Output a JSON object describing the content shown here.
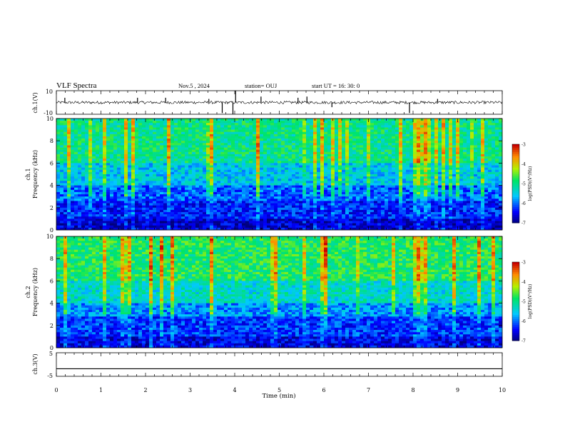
{
  "header": {
    "title": "VLF Spectra",
    "date": "Nov.5 , 2024",
    "station": "station= OUJ",
    "start": "start UT = 16: 30: 0"
  },
  "chart_data": [
    {
      "type": "line",
      "panel": "ch1-waveform",
      "ylabel": "ch.1(V)",
      "ylim": [
        -10,
        10
      ],
      "yticks": [
        "10",
        "-10"
      ],
      "xlim": [
        0,
        10
      ],
      "series": [
        {
          "baseline": 0,
          "noise_amplitude": 1.2,
          "spikes": [
            {
              "x": 0.19,
              "y": 4
            },
            {
              "x": 1.82,
              "y": 4
            },
            {
              "x": 2.45,
              "y": 4
            },
            {
              "x": 3.42,
              "y": 3
            },
            {
              "x": 3.72,
              "y": -9
            },
            {
              "x": 3.96,
              "y": -10
            },
            {
              "x": 4.02,
              "y": 10
            },
            {
              "x": 4.59,
              "y": 5
            },
            {
              "x": 5.42,
              "y": 4
            },
            {
              "x": 5.62,
              "y": 5
            },
            {
              "x": 6.18,
              "y": -4
            },
            {
              "x": 7.92,
              "y": -9
            },
            {
              "x": 8.55,
              "y": 3
            }
          ]
        }
      ]
    },
    {
      "type": "heatmap",
      "panel": "ch1-spectrogram",
      "ylabel": "ch.1 Frequency (kHz)",
      "ylim": [
        0,
        10
      ],
      "yticks": [
        "0",
        "2",
        "4",
        "6",
        "8",
        "10"
      ],
      "xlim": [
        0,
        10
      ],
      "colorbar": {
        "label": "log(PSD)(V²/Hz)",
        "range": [
          -7,
          -3
        ],
        "ticks": [
          "-3",
          "-4",
          "-5",
          "-6",
          "-7"
        ]
      },
      "bands": [
        {
          "f_low": 0,
          "f_high": 1,
          "log_psd": -6.6
        },
        {
          "f_low": 1,
          "f_high": 2.5,
          "log_psd": -6.3
        },
        {
          "f_low": 2.5,
          "f_high": 4,
          "log_psd": -6.0
        },
        {
          "f_low": 4,
          "f_high": 6,
          "log_psd": -5.5
        },
        {
          "f_low": 6,
          "f_high": 10,
          "log_psd": -5.0
        }
      ]
    },
    {
      "type": "heatmap",
      "panel": "ch2-spectrogram",
      "ylabel": "ch.2 Frequency (kHz)",
      "ylim": [
        0,
        10
      ],
      "yticks": [
        "0",
        "2",
        "4",
        "6",
        "8",
        "10"
      ],
      "xlim": [
        0,
        10
      ],
      "colorbar": {
        "label": "log(PSD)(V²/Hz)",
        "range": [
          -7,
          -3
        ],
        "ticks": [
          "-3",
          "-4",
          "-5",
          "-6",
          "-7"
        ]
      },
      "bands": [
        {
          "f_low": 0,
          "f_high": 1,
          "log_psd": -6.5
        },
        {
          "f_low": 1,
          "f_high": 2.8,
          "log_psd": -6.2
        },
        {
          "f_low": 2.8,
          "f_high": 4,
          "log_psd": -5.8
        },
        {
          "f_low": 4,
          "f_high": 6,
          "log_psd": -5.3
        },
        {
          "f_low": 6,
          "f_high": 10,
          "log_psd": -4.8
        }
      ]
    },
    {
      "type": "line",
      "panel": "ch3-waveform",
      "ylabel": "ch.3(V)",
      "ylim": [
        -5,
        5
      ],
      "yticks": [
        "5",
        "-5"
      ],
      "xlim": [
        0,
        10
      ],
      "series": [
        {
          "constant": -1.8
        }
      ]
    }
  ],
  "xaxis": {
    "label": "Time (min)",
    "ticks": [
      "0",
      "1",
      "2",
      "3",
      "4",
      "5",
      "6",
      "7",
      "8",
      "9",
      "10"
    ]
  }
}
